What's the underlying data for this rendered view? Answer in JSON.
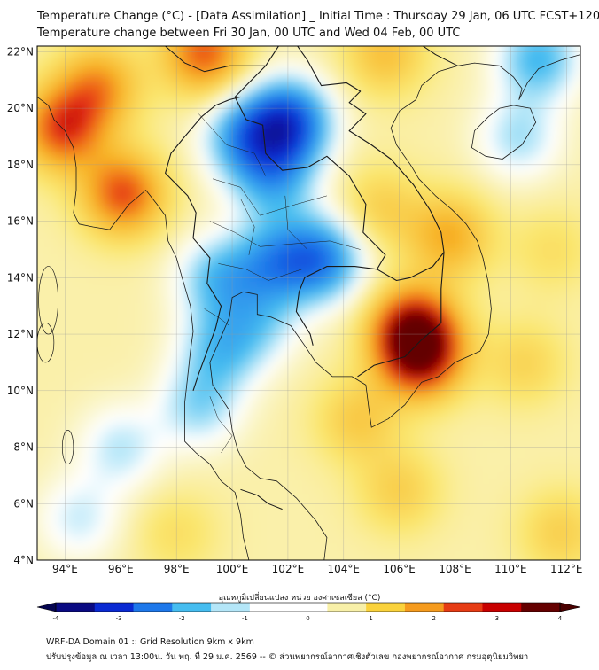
{
  "header": {
    "title_line1": "Temperature Change (°C) - [Data Assimilation] _ Initial Time : Thursday 29 Jan, 06 UTC FCST+120",
    "title_line2": "Temperature change between Fri 30 Jan, 00 UTC and Wed 04 Feb, 00 UTC"
  },
  "map": {
    "lat_ticks": [
      "4°N",
      "6°N",
      "8°N",
      "10°N",
      "12°N",
      "14°N",
      "16°N",
      "18°N",
      "20°N",
      "22°N"
    ],
    "lon_ticks": [
      "94°E",
      "96°E",
      "98°E",
      "100°E",
      "102°E",
      "104°E",
      "106°E",
      "108°E",
      "110°E",
      "112°E"
    ],
    "lat_range": [
      4,
      22.2
    ],
    "lon_range": [
      93,
      112.5
    ],
    "grid": true,
    "anomalies": [
      {
        "lon": 102.0,
        "lat": 19.5,
        "value": -2.8
      },
      {
        "lon": 100.5,
        "lat": 19.0,
        "value": -1.6
      },
      {
        "lon": 101.5,
        "lat": 17.5,
        "value": -1.2
      },
      {
        "lon": 103.2,
        "lat": 14.7,
        "value": -2.0
      },
      {
        "lon": 101.5,
        "lat": 14.6,
        "value": -1.4
      },
      {
        "lon": 99.5,
        "lat": 14.0,
        "value": -1.1
      },
      {
        "lon": 99.6,
        "lat": 11.5,
        "value": -1.0
      },
      {
        "lon": 98.8,
        "lat": 9.5,
        "value": -0.8
      },
      {
        "lon": 101.0,
        "lat": 12.5,
        "value": -0.6
      },
      {
        "lon": 96.0,
        "lat": 8.0,
        "value": -0.6
      },
      {
        "lon": 94.5,
        "lat": 5.5,
        "value": -0.5
      },
      {
        "lon": 111.0,
        "lat": 21.8,
        "value": -1.3
      },
      {
        "lon": 110.3,
        "lat": 19.0,
        "value": -0.7
      },
      {
        "lon": 106.5,
        "lat": 12.2,
        "value": 3.2
      },
      {
        "lon": 106.8,
        "lat": 11.2,
        "value": 2.8
      },
      {
        "lon": 107.8,
        "lat": 15.5,
        "value": 1.8
      },
      {
        "lon": 105.3,
        "lat": 16.5,
        "value": 1.2
      },
      {
        "lon": 93.9,
        "lat": 19.3,
        "value": 2.6
      },
      {
        "lon": 96.1,
        "lat": 17.0,
        "value": 2.6
      },
      {
        "lon": 95.2,
        "lat": 20.8,
        "value": 2.0
      },
      {
        "lon": 99.0,
        "lat": 22.0,
        "value": 2.5
      },
      {
        "lon": 105.5,
        "lat": 22.0,
        "value": 1.5
      },
      {
        "lon": 104.5,
        "lat": 9.0,
        "value": 1.3
      },
      {
        "lon": 106.0,
        "lat": 6.5,
        "value": 1.2
      },
      {
        "lon": 110.5,
        "lat": 11.0,
        "value": 1.1
      },
      {
        "lon": 111.8,
        "lat": 5.0,
        "value": 1.2
      },
      {
        "lon": 111.5,
        "lat": 15.0,
        "value": 0.9
      },
      {
        "lon": 98.0,
        "lat": 5.0,
        "value": 0.9
      }
    ]
  },
  "colorbar": {
    "label": "อุณหภูมิเปลี่ยนแปลง หน่วย องศาเซลเซียส (°C)",
    "ticks": [
      "-4",
      "-3",
      "-2",
      "-1",
      "0",
      "1",
      "2",
      "3",
      "4"
    ],
    "range": [
      -4,
      4
    ],
    "colors": [
      "#0a0a82",
      "#0a2ad2",
      "#1e78ea",
      "#46bdf0",
      "#b4e6f8",
      "#ffffff",
      "#ffffff",
      "#f8f0a8",
      "#fad23c",
      "#f59b1e",
      "#e63c14",
      "#c80000",
      "#640000"
    ]
  },
  "footer": {
    "line1": "WRF-DA Domain 01 :: Grid Resolution 9km x 9km",
    "line2": "ปรับปรุงข้อมูล ณ เวลา 13:00น. วัน พฤ. ที่ 29 ม.ค. 2569 -- © ส่วนพยากรณ์อากาศเชิงตัวเลข กองพยากรณ์อากาศ กรมอุตุนิยมวิทยา"
  }
}
